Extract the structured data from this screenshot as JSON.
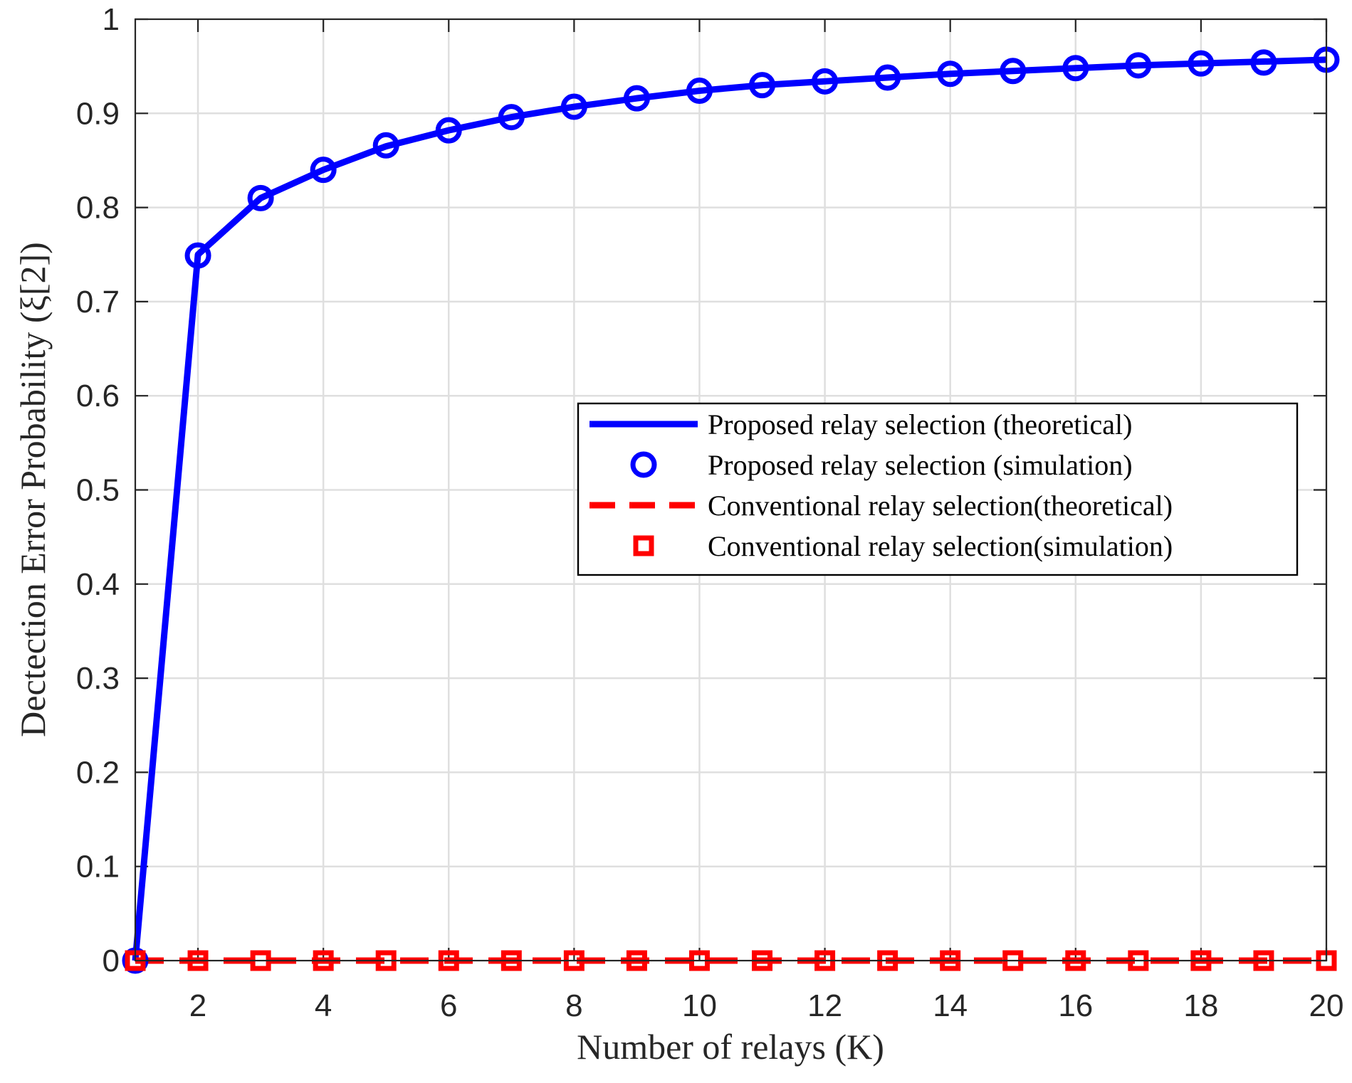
{
  "chart_data": {
    "type": "line",
    "xlabel": "Number of relays (K)",
    "ylabel": "Dectection Error Probability (ξ[2])",
    "xlim": [
      1,
      20
    ],
    "ylim": [
      0,
      1
    ],
    "xticks": [
      2,
      4,
      6,
      8,
      10,
      12,
      14,
      16,
      18,
      20
    ],
    "yticks": [
      0,
      0.1,
      0.2,
      0.3,
      0.4,
      0.5,
      0.6,
      0.7,
      0.8,
      0.9,
      1
    ],
    "ytick_labels": [
      "0",
      "0.1",
      "0.2",
      "0.3",
      "0.4",
      "0.5",
      "0.6",
      "0.7",
      "0.8",
      "0.9",
      "1"
    ],
    "grid": true,
    "legend_position": "center-right",
    "x": [
      1,
      2,
      3,
      4,
      5,
      6,
      7,
      8,
      9,
      10,
      11,
      12,
      13,
      14,
      15,
      16,
      17,
      18,
      19,
      20
    ],
    "series": [
      {
        "name": "Proposed relay selection (theoretical)",
        "style": "solid-line",
        "color": "#0000ff",
        "values": [
          0,
          0.75,
          0.81,
          0.84,
          0.865,
          0.882,
          0.896,
          0.907,
          0.916,
          0.924,
          0.93,
          0.934,
          0.938,
          0.942,
          0.945,
          0.948,
          0.951,
          0.953,
          0.955,
          0.957
        ]
      },
      {
        "name": "Proposed relay selection (simulation)",
        "style": "circle-markers",
        "color": "#0000ff",
        "values": [
          0,
          0.749,
          0.81,
          0.84,
          0.866,
          0.882,
          0.896,
          0.907,
          0.916,
          0.924,
          0.93,
          0.934,
          0.938,
          0.942,
          0.945,
          0.948,
          0.951,
          0.953,
          0.954,
          0.957
        ]
      },
      {
        "name": "Conventional relay selection(theoretical)",
        "style": "dashed-line",
        "color": "#ff0000",
        "values": [
          0,
          0,
          0,
          0,
          0,
          0,
          0,
          0,
          0,
          0,
          0,
          0,
          0,
          0,
          0,
          0,
          0,
          0,
          0,
          0
        ]
      },
      {
        "name": "Conventional relay selection(simulation)",
        "style": "square-markers",
        "color": "#ff0000",
        "values": [
          0,
          0,
          0,
          0,
          0,
          0,
          0,
          0,
          0,
          0,
          0,
          0,
          0,
          0,
          0,
          0,
          0,
          0,
          0,
          0
        ]
      }
    ]
  }
}
